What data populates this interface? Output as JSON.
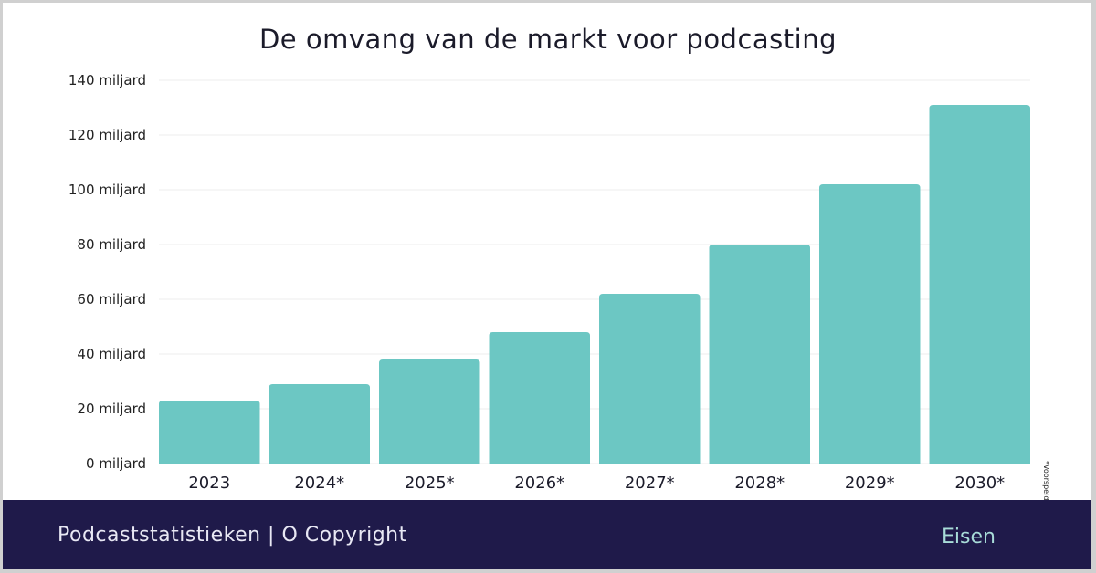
{
  "chart_data": {
    "type": "bar",
    "title": "De omvang van de markt voor podcasting",
    "categories": [
      "2023",
      "2024*",
      "2025*",
      "2026*",
      "2027*",
      "2028*",
      "2029*",
      "2030*"
    ],
    "values": [
      23,
      29,
      38,
      48,
      62,
      80,
      102,
      131
    ],
    "unit": "miljard",
    "yticks": [
      "0 miljard",
      "20 miljard",
      "40 miljard",
      "60 miljard",
      "80 miljard",
      "100 miljard",
      "120 miljard",
      "140 miljard"
    ],
    "ytick_values": [
      0,
      20,
      40,
      60,
      80,
      100,
      120,
      140
    ],
    "ylim": [
      0,
      140
    ],
    "grid": true,
    "bar_color": "#6cc7c3",
    "note": "*Voorspeld"
  },
  "footer": {
    "left": "Podcaststatistieken | O Copyright",
    "right": "Eisen",
    "background": "#1f1a4a"
  }
}
